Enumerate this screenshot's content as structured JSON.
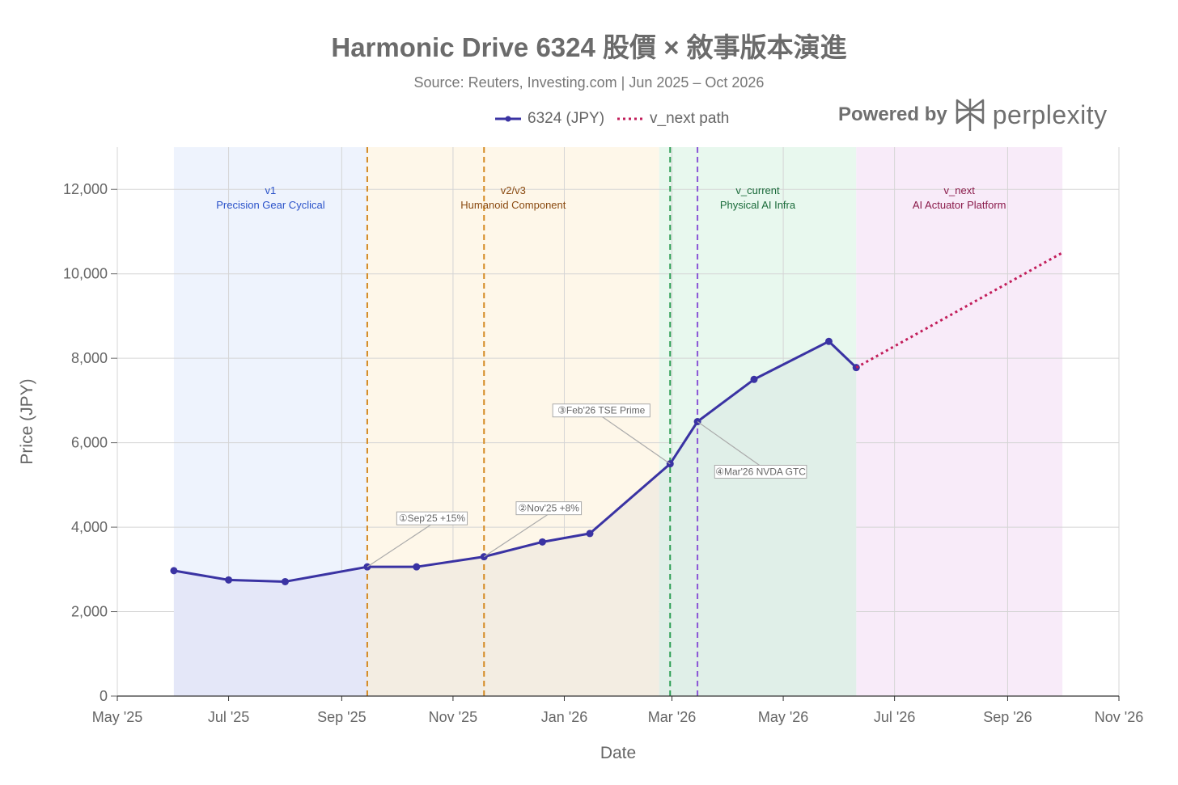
{
  "chart_data": {
    "type": "line",
    "title": "Harmonic Drive 6324 股價 × 敘事版本演進",
    "subtitle": "Source: Reuters, Investing.com | Jun 2025 – Oct 2026",
    "xlabel": "Date",
    "ylabel": "Price (JPY)",
    "ylim": [
      0,
      13000
    ],
    "xlim": [
      "2025-05-01",
      "2026-11-01"
    ],
    "x_ticks": [
      "2025-05-01",
      "2025-07-01",
      "2025-09-01",
      "2025-11-01",
      "2026-01-01",
      "2026-03-01",
      "2026-05-01",
      "2026-07-01",
      "2026-09-01",
      "2026-11-01"
    ],
    "x_tick_labels": [
      "May '25",
      "Jul '25",
      "Sep '25",
      "Nov '25",
      "Jan '26",
      "Mar '26",
      "May '26",
      "Jul '26",
      "Sep '26",
      "Nov '26"
    ],
    "y_ticks": [
      0,
      2000,
      4000,
      6000,
      8000,
      10000,
      12000
    ],
    "y_tick_labels": [
      "0",
      "2,000",
      "4,000",
      "6,000",
      "8,000",
      "10,000",
      "12,000"
    ],
    "grid": true,
    "legend_position": "top",
    "series": [
      {
        "name": "6324 (JPY)",
        "color": "#3a33a3",
        "style": "solid-markers",
        "x": [
          "2025-06-01",
          "2025-07-01",
          "2025-08-01",
          "2025-09-15",
          "2025-10-12",
          "2025-11-18",
          "2025-12-20",
          "2026-01-15",
          "2026-02-28",
          "2026-03-15",
          "2026-04-15",
          "2026-05-26",
          "2026-06-10"
        ],
        "y": [
          2970,
          2750,
          2710,
          3060,
          3060,
          3300,
          3650,
          3850,
          5500,
          6500,
          7500,
          8400,
          7780
        ]
      },
      {
        "name": "v_next path",
        "color": "#c21d5a",
        "style": "dotted",
        "x": [
          "2026-06-10",
          "2026-10-01"
        ],
        "y": [
          7780,
          10500
        ]
      }
    ],
    "regions": [
      {
        "start": "2025-06-01",
        "end": "2025-09-15",
        "color": "#eef3fd",
        "version": "v1",
        "label": "Precision Gear Cyclical",
        "text_color": "#2a52c9"
      },
      {
        "start": "2025-09-15",
        "end": "2026-02-22",
        "color": "#fef7e9",
        "version": "v2/v3",
        "label": "Humanoid Component",
        "text_color": "#8a4a10"
      },
      {
        "start": "2026-02-22",
        "end": "2026-06-10",
        "color": "#e8f8ee",
        "version": "v_current",
        "label": "Physical AI Infra",
        "text_color": "#1a6b3a"
      },
      {
        "start": "2026-06-10",
        "end": "2026-10-01",
        "color": "#f8ebf9",
        "version": "v_next",
        "label": "AI Actuator Platform",
        "text_color": "#8a1a4a"
      }
    ],
    "area_fills": [
      "#e4e7f8",
      "#f3ede2",
      "#e0efe8"
    ],
    "vlines": [
      {
        "x": "2025-09-15",
        "color": "#d48a22"
      },
      {
        "x": "2025-11-18",
        "color": "#d48a22"
      },
      {
        "x": "2026-02-28",
        "color": "#2e9e55"
      },
      {
        "x": "2026-03-15",
        "color": "#8a55d6"
      }
    ],
    "annotations": [
      {
        "text": "①Sep'25 +15%",
        "x": "2025-09-15",
        "y": 3060
      },
      {
        "text": "②Nov'25 +8%",
        "x": "2025-11-18",
        "y": 3300
      },
      {
        "text": "③Feb'26 TSE Prime",
        "x": "2026-02-28",
        "y": 5500
      },
      {
        "text": "④Mar'26 NVDA GTC",
        "x": "2026-03-15",
        "y": 6500
      }
    ]
  },
  "branding": {
    "powered_by": "Powered by",
    "wordmark": "perplexity"
  }
}
